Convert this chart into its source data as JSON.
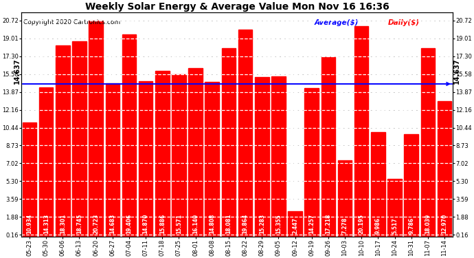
{
  "title": "Weekly Solar Energy & Average Value Mon Nov 16 16:36",
  "copyright": "Copyright 2020 Cartronics.com",
  "legend_avg": "Average($)",
  "legend_daily": "Daily($)",
  "average_line": 14.637,
  "average_label": "14.637",
  "categories": [
    "05-23",
    "05-30",
    "06-06",
    "06-13",
    "06-20",
    "06-27",
    "07-04",
    "07-11",
    "07-18",
    "07-25",
    "08-01",
    "08-08",
    "08-15",
    "08-22",
    "08-29",
    "09-05",
    "09-12",
    "09-19",
    "09-26",
    "10-03",
    "10-10",
    "10-17",
    "10-24",
    "10-31",
    "11-07",
    "11-14"
  ],
  "values": [
    10.934,
    14.313,
    18.301,
    18.745,
    20.723,
    14.683,
    19.406,
    14.87,
    15.886,
    15.571,
    16.14,
    14.808,
    18.081,
    19.864,
    15.283,
    15.355,
    2.447,
    14.257,
    17.218,
    7.278,
    20.195,
    9.986,
    5.517,
    9.786,
    18.039,
    12.97
  ],
  "bar_color": "#FF0000",
  "avg_line_color": "#0000FF",
  "background_color": "#FFFFFF",
  "yticks": [
    0.16,
    1.88,
    3.59,
    5.3,
    7.02,
    8.73,
    10.44,
    12.16,
    13.87,
    15.58,
    17.3,
    19.01,
    20.72
  ],
  "ylim": [
    0.0,
    21.5
  ],
  "title_fontsize": 10,
  "copyright_fontsize": 6.5,
  "tick_fontsize": 6.0,
  "value_fontsize": 5.5,
  "avg_label_fontsize": 7.0,
  "legend_fontsize": 7.5
}
